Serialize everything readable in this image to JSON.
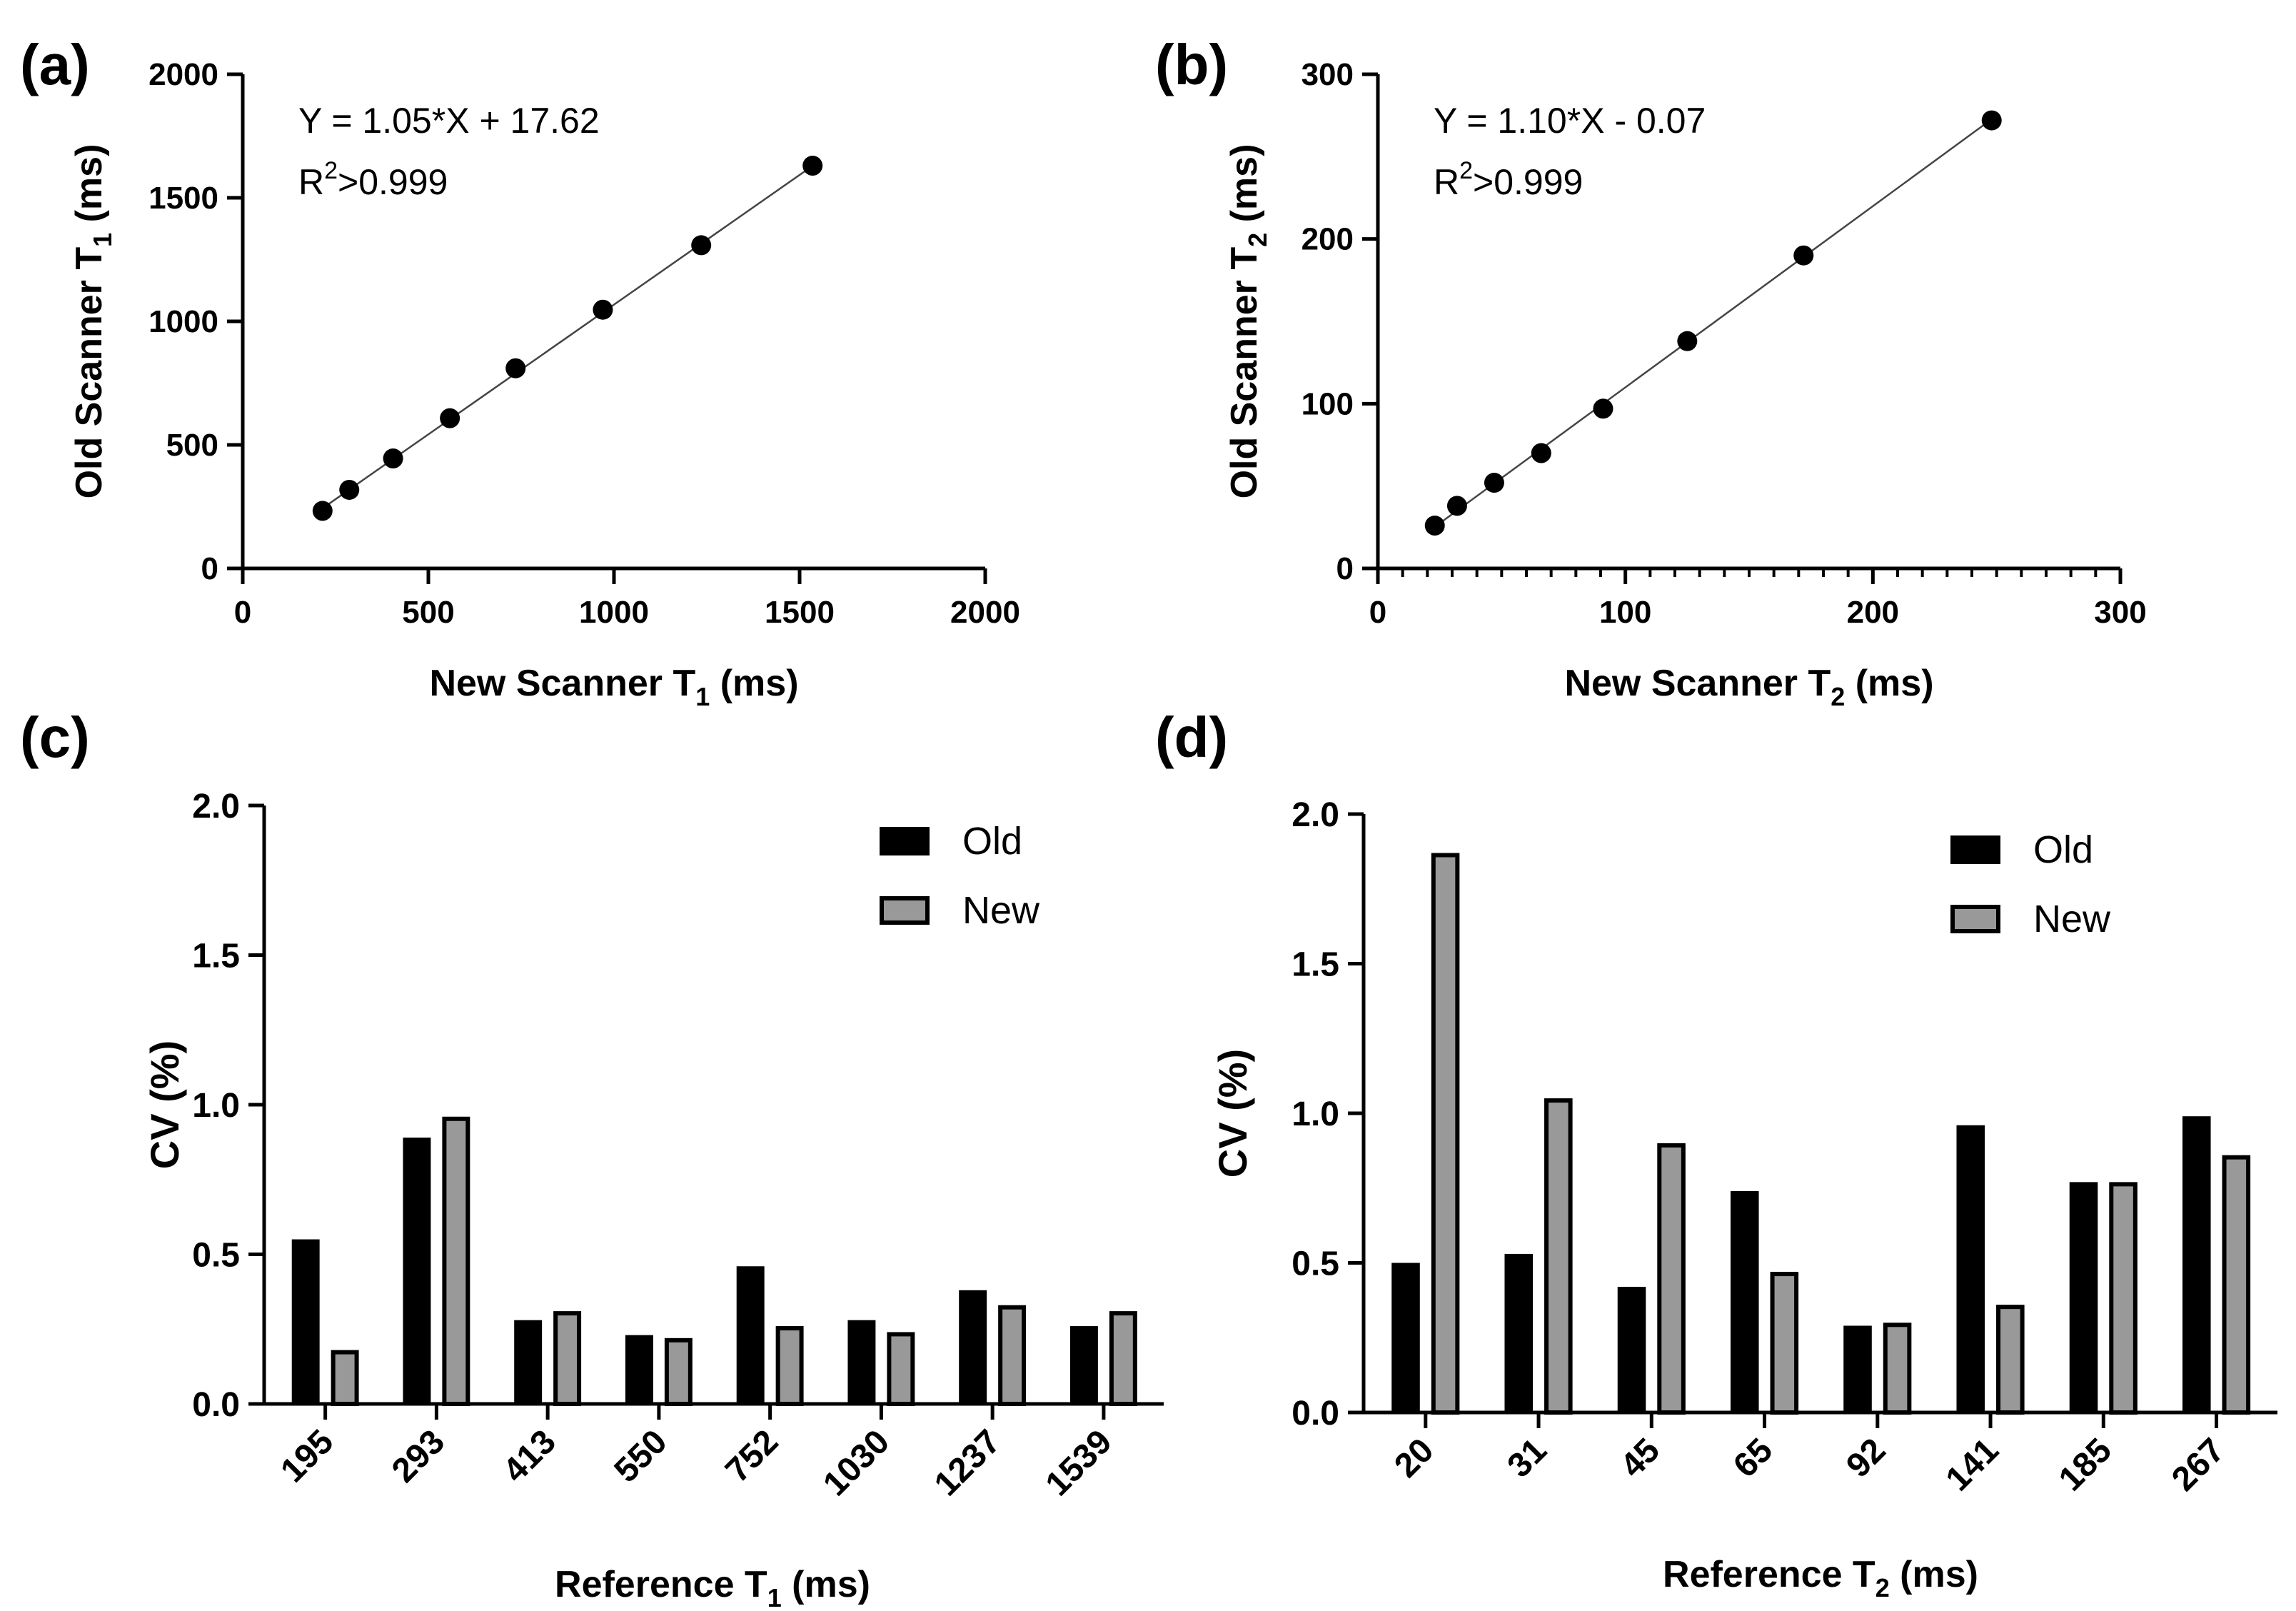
{
  "chart_data": [
    {
      "panel_label": "(a)",
      "type": "scatter",
      "xlabel_main": "New Scanner T",
      "xlabel_sub": "1",
      "xlabel_unit": " (ms)",
      "ylabel_main": "Old Scanner T",
      "ylabel_sub": "1",
      "ylabel_unit": " (ms)",
      "xlim": [
        0,
        2000
      ],
      "ylim": [
        0,
        2000
      ],
      "xticks": [
        0,
        500,
        1000,
        1500,
        2000
      ],
      "yticks": [
        0,
        500,
        1000,
        1500,
        2000
      ],
      "x": [
        215,
        287,
        405,
        558,
        735,
        970,
        1235,
        1535
      ],
      "y": [
        233,
        318,
        445,
        608,
        810,
        1047,
        1308,
        1630
      ],
      "fit": {
        "slope": 1.05,
        "intercept": 17.62
      },
      "equation": "Y = 1.05*X + 17.62",
      "r2_prefix": "R",
      "r2_sup": "2",
      "r2_value": ">0.999"
    },
    {
      "panel_label": "(b)",
      "type": "scatter",
      "xlabel_main": "New Scanner T",
      "xlabel_sub": "2",
      "xlabel_unit": " (ms)",
      "ylabel_main": "Old Scanner T",
      "ylabel_sub": "2",
      "ylabel_unit": " (ms)",
      "xlim": [
        0,
        300
      ],
      "ylim": [
        0,
        300
      ],
      "xticks": [
        0,
        100,
        200,
        300
      ],
      "yticks": [
        0,
        100,
        200,
        300
      ],
      "x": [
        23,
        32,
        47,
        66,
        91,
        125,
        172,
        248
      ],
      "y": [
        26,
        38,
        52,
        70,
        97,
        138,
        190,
        272
      ],
      "fit": {
        "slope": 1.1,
        "intercept": -0.07
      },
      "equation": "Y = 1.10*X - 0.07",
      "r2_prefix": "R",
      "r2_sup": "2",
      "r2_value": ">0.999"
    },
    {
      "panel_label": "(c)",
      "type": "bar",
      "xlabel_main": "Reference T",
      "xlabel_sub": "1",
      "xlabel_unit": " (ms)",
      "ylabel": "CV (%)",
      "ylim": [
        0,
        2.0
      ],
      "yticks": [
        "0.0",
        "0.5",
        "1.0",
        "1.5",
        "2.0"
      ],
      "categories": [
        "195",
        "293",
        "413",
        "550",
        "752",
        "1030",
        "1237",
        "1539"
      ],
      "series": [
        {
          "name": "Old",
          "values": [
            0.55,
            0.89,
            0.28,
            0.23,
            0.46,
            0.28,
            0.38,
            0.26
          ]
        },
        {
          "name": "New",
          "values": [
            0.18,
            0.96,
            0.31,
            0.22,
            0.26,
            0.24,
            0.33,
            0.31
          ]
        }
      ]
    },
    {
      "panel_label": "(d)",
      "type": "bar",
      "xlabel_main": "Reference T",
      "xlabel_sub": "2",
      "xlabel_unit": " (ms)",
      "ylabel": "CV (%)",
      "ylim": [
        0,
        2.0
      ],
      "yticks": [
        "0.0",
        "0.5",
        "1.0",
        "1.5",
        "2.0"
      ],
      "categories": [
        "20",
        "31",
        "45",
        "65",
        "92",
        "141",
        "185",
        "267"
      ],
      "series": [
        {
          "name": "Old",
          "values": [
            0.5,
            0.53,
            0.42,
            0.74,
            0.29,
            0.96,
            0.77,
            0.99
          ]
        },
        {
          "name": "New",
          "values": [
            1.87,
            1.05,
            0.9,
            0.47,
            0.3,
            0.36,
            0.77,
            0.86
          ]
        }
      ]
    }
  ],
  "colors": {
    "old_bar": "#000000",
    "new_bar": "#999999",
    "axis": "#000000",
    "point": "#000000",
    "fit_line": "#444444"
  }
}
